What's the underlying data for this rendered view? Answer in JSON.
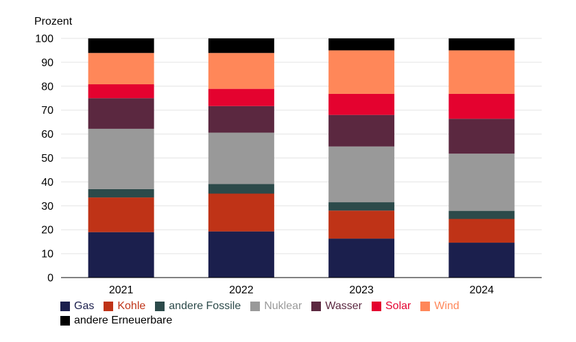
{
  "chart_data": {
    "type": "bar",
    "stacked": true,
    "ylabel": "Prozent",
    "ylim": [
      0,
      100
    ],
    "yticks": [
      0,
      10,
      20,
      30,
      40,
      50,
      60,
      70,
      80,
      90,
      100
    ],
    "grid": true,
    "legend_position": "bottom",
    "categories": [
      "2021",
      "2022",
      "2023",
      "2024"
    ],
    "series": [
      {
        "name": "Gas",
        "color": "#1b1f4d",
        "text_color": "#1b1f4d",
        "values": [
          19,
          19.3,
          16.3,
          14.6
        ]
      },
      {
        "name": "Kohle",
        "color": "#bf3317",
        "text_color": "#bf3317",
        "values": [
          14.5,
          15.8,
          11.7,
          9.9
        ]
      },
      {
        "name": "andere Fossile",
        "color": "#2c4a4a",
        "text_color": "#2c4a4a",
        "values": [
          3.5,
          4,
          3.5,
          3.4
        ]
      },
      {
        "name": "Nuklear",
        "color": "#999999",
        "text_color": "#999999",
        "values": [
          25.2,
          21.5,
          23.3,
          23.9
        ]
      },
      {
        "name": "Wasser",
        "color": "#5b2840",
        "text_color": "#5b2840",
        "values": [
          12.8,
          11.1,
          13.2,
          14.6
        ]
      },
      {
        "name": "Solar",
        "color": "#e4022f",
        "text_color": "#e4022f",
        "values": [
          5.8,
          7.2,
          8.8,
          10.4
        ]
      },
      {
        "name": "Wind",
        "color": "#ff8759",
        "text_color": "#ff8759",
        "values": [
          13.1,
          15,
          18.2,
          18.2
        ]
      },
      {
        "name": "andere Erneuerbare",
        "color": "#000000",
        "text_color": "#000000",
        "values": [
          6.1,
          6.1,
          5,
          5
        ]
      }
    ]
  }
}
